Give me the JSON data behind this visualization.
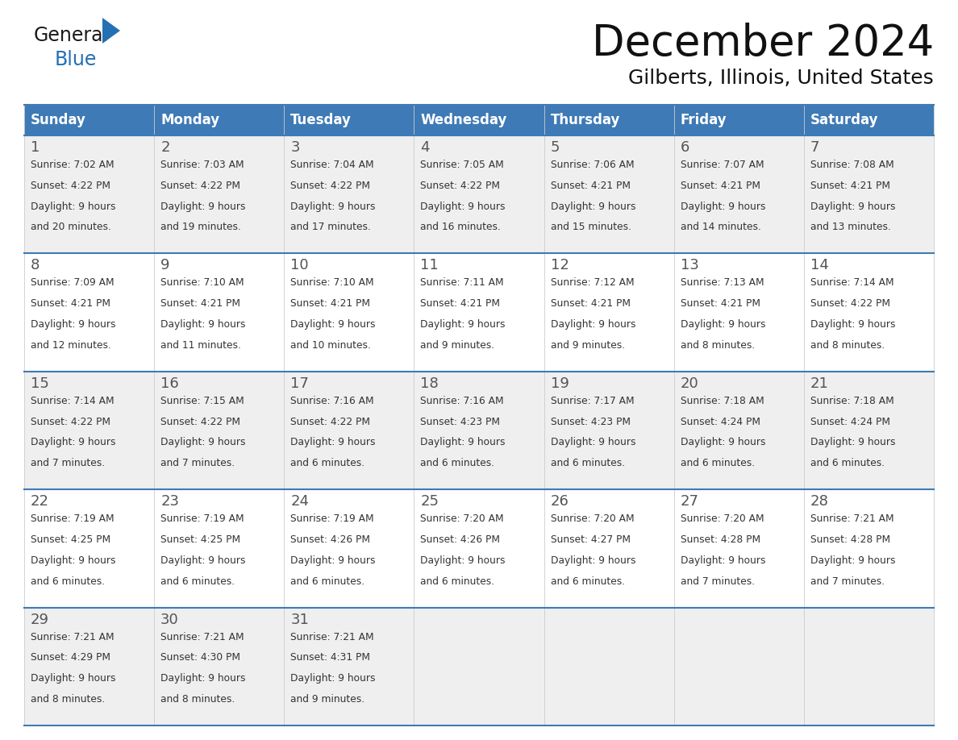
{
  "title": "December 2024",
  "subtitle": "Gilberts, Illinois, United States",
  "header_color": "#3E7AB5",
  "header_text_color": "#FFFFFF",
  "cell_bg_odd": "#EFEFEF",
  "cell_bg_even": "#FFFFFF",
  "day_names": [
    "Sunday",
    "Monday",
    "Tuesday",
    "Wednesday",
    "Thursday",
    "Friday",
    "Saturday"
  ],
  "grid_line_color": "#3E7AB5",
  "day_number_color": "#555555",
  "text_color": "#333333",
  "weeks": [
    [
      {
        "day": 1,
        "sunrise": "7:02 AM",
        "sunset": "4:22 PM",
        "daylight": "9 hours and 20 minutes"
      },
      {
        "day": 2,
        "sunrise": "7:03 AM",
        "sunset": "4:22 PM",
        "daylight": "9 hours and 19 minutes"
      },
      {
        "day": 3,
        "sunrise": "7:04 AM",
        "sunset": "4:22 PM",
        "daylight": "9 hours and 17 minutes"
      },
      {
        "day": 4,
        "sunrise": "7:05 AM",
        "sunset": "4:22 PM",
        "daylight": "9 hours and 16 minutes"
      },
      {
        "day": 5,
        "sunrise": "7:06 AM",
        "sunset": "4:21 PM",
        "daylight": "9 hours and 15 minutes"
      },
      {
        "day": 6,
        "sunrise": "7:07 AM",
        "sunset": "4:21 PM",
        "daylight": "9 hours and 14 minutes"
      },
      {
        "day": 7,
        "sunrise": "7:08 AM",
        "sunset": "4:21 PM",
        "daylight": "9 hours and 13 minutes"
      }
    ],
    [
      {
        "day": 8,
        "sunrise": "7:09 AM",
        "sunset": "4:21 PM",
        "daylight": "9 hours and 12 minutes"
      },
      {
        "day": 9,
        "sunrise": "7:10 AM",
        "sunset": "4:21 PM",
        "daylight": "9 hours and 11 minutes"
      },
      {
        "day": 10,
        "sunrise": "7:10 AM",
        "sunset": "4:21 PM",
        "daylight": "9 hours and 10 minutes"
      },
      {
        "day": 11,
        "sunrise": "7:11 AM",
        "sunset": "4:21 PM",
        "daylight": "9 hours and 9 minutes"
      },
      {
        "day": 12,
        "sunrise": "7:12 AM",
        "sunset": "4:21 PM",
        "daylight": "9 hours and 9 minutes"
      },
      {
        "day": 13,
        "sunrise": "7:13 AM",
        "sunset": "4:21 PM",
        "daylight": "9 hours and 8 minutes"
      },
      {
        "day": 14,
        "sunrise": "7:14 AM",
        "sunset": "4:22 PM",
        "daylight": "9 hours and 8 minutes"
      }
    ],
    [
      {
        "day": 15,
        "sunrise": "7:14 AM",
        "sunset": "4:22 PM",
        "daylight": "9 hours and 7 minutes"
      },
      {
        "day": 16,
        "sunrise": "7:15 AM",
        "sunset": "4:22 PM",
        "daylight": "9 hours and 7 minutes"
      },
      {
        "day": 17,
        "sunrise": "7:16 AM",
        "sunset": "4:22 PM",
        "daylight": "9 hours and 6 minutes"
      },
      {
        "day": 18,
        "sunrise": "7:16 AM",
        "sunset": "4:23 PM",
        "daylight": "9 hours and 6 minutes"
      },
      {
        "day": 19,
        "sunrise": "7:17 AM",
        "sunset": "4:23 PM",
        "daylight": "9 hours and 6 minutes"
      },
      {
        "day": 20,
        "sunrise": "7:18 AM",
        "sunset": "4:24 PM",
        "daylight": "9 hours and 6 minutes"
      },
      {
        "day": 21,
        "sunrise": "7:18 AM",
        "sunset": "4:24 PM",
        "daylight": "9 hours and 6 minutes"
      }
    ],
    [
      {
        "day": 22,
        "sunrise": "7:19 AM",
        "sunset": "4:25 PM",
        "daylight": "9 hours and 6 minutes"
      },
      {
        "day": 23,
        "sunrise": "7:19 AM",
        "sunset": "4:25 PM",
        "daylight": "9 hours and 6 minutes"
      },
      {
        "day": 24,
        "sunrise": "7:19 AM",
        "sunset": "4:26 PM",
        "daylight": "9 hours and 6 minutes"
      },
      {
        "day": 25,
        "sunrise": "7:20 AM",
        "sunset": "4:26 PM",
        "daylight": "9 hours and 6 minutes"
      },
      {
        "day": 26,
        "sunrise": "7:20 AM",
        "sunset": "4:27 PM",
        "daylight": "9 hours and 6 minutes"
      },
      {
        "day": 27,
        "sunrise": "7:20 AM",
        "sunset": "4:28 PM",
        "daylight": "9 hours and 7 minutes"
      },
      {
        "day": 28,
        "sunrise": "7:21 AM",
        "sunset": "4:28 PM",
        "daylight": "9 hours and 7 minutes"
      }
    ],
    [
      {
        "day": 29,
        "sunrise": "7:21 AM",
        "sunset": "4:29 PM",
        "daylight": "9 hours and 8 minutes"
      },
      {
        "day": 30,
        "sunrise": "7:21 AM",
        "sunset": "4:30 PM",
        "daylight": "9 hours and 8 minutes"
      },
      {
        "day": 31,
        "sunrise": "7:21 AM",
        "sunset": "4:31 PM",
        "daylight": "9 hours and 9 minutes"
      },
      null,
      null,
      null,
      null
    ]
  ],
  "logo_general_color": "#1a1a1a",
  "logo_blue_color": "#2470B4",
  "logo_triangle_color": "#2470B4"
}
